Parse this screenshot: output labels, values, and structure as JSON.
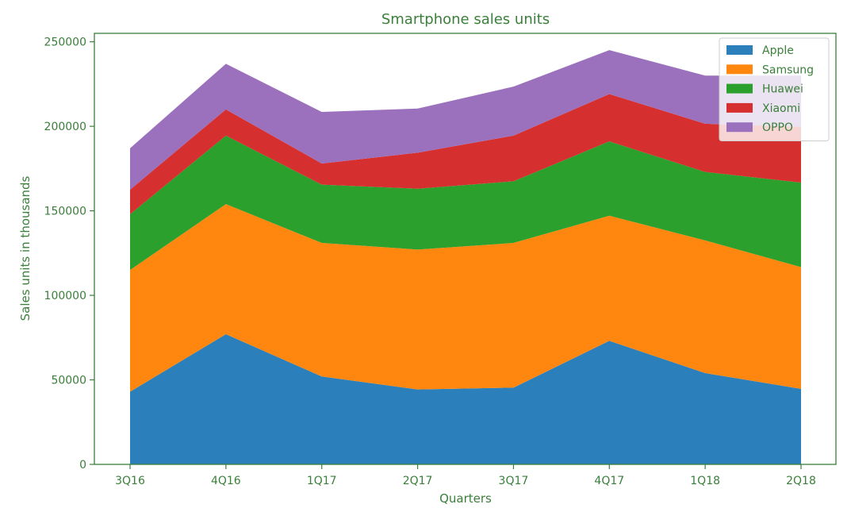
{
  "chart_data": {
    "type": "area",
    "stacked": true,
    "title": "Smartphone sales units",
    "xlabel": "Quarters",
    "ylabel": "Sales units in thousands",
    "categories": [
      "3Q16",
      "4Q16",
      "1Q17",
      "2Q17",
      "3Q17",
      "4Q17",
      "1Q18",
      "2Q18"
    ],
    "ylim": [
      0,
      255000
    ],
    "yticks": [
      0,
      50000,
      100000,
      150000,
      200000,
      250000
    ],
    "legend_position": "top-right",
    "grid": false,
    "series": [
      {
        "name": "Apple",
        "color": "#2b7fbb",
        "values": [
          43000,
          77000,
          52000,
          44300,
          45400,
          73100,
          54000,
          44700
        ]
      },
      {
        "name": "Samsung",
        "color": "#ff870f",
        "values": [
          72000,
          77000,
          79000,
          82800,
          85600,
          74000,
          78500,
          72000
        ]
      },
      {
        "name": "Huawei",
        "color": "#2ca02c",
        "values": [
          33000,
          40500,
          34500,
          36000,
          36500,
          44000,
          40500,
          50000
        ]
      },
      {
        "name": "Xiaomi",
        "color": "#d62f2f",
        "values": [
          14500,
          15500,
          12500,
          21300,
          27000,
          28000,
          28500,
          33000
        ]
      },
      {
        "name": "OPPO",
        "color": "#9b71bd",
        "values": [
          24500,
          27000,
          30500,
          26100,
          29000,
          26000,
          28500,
          30300
        ]
      }
    ]
  }
}
